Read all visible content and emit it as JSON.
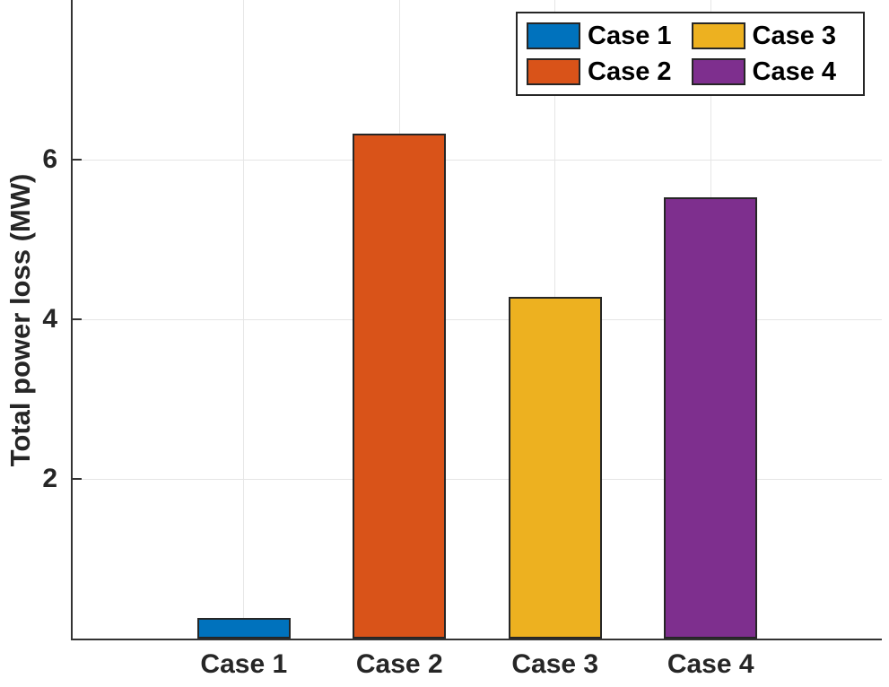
{
  "chart_data": {
    "type": "bar",
    "title": "",
    "xlabel": "",
    "ylabel": "Total power loss (MW)",
    "categories": [
      "Case 1",
      "Case 2",
      "Case 3",
      "Case 4"
    ],
    "values": [
      0.26,
      6.33,
      4.28,
      5.53
    ],
    "bar_colors": [
      "#0072BD",
      "#D95319",
      "#EDB120",
      "#7E2F8E"
    ],
    "ylim": [
      0,
      8
    ],
    "yticks": [
      2,
      4,
      6
    ],
    "xlim": [
      -0.1,
      5.1
    ],
    "bar_width_fraction": 0.6,
    "grid": "on",
    "legend": {
      "position": "top-right",
      "layout": "2x2-column-major",
      "entries": [
        {
          "label": "Case 1",
          "color": "#0072BD"
        },
        {
          "label": "Case 2",
          "color": "#D95319"
        },
        {
          "label": "Case 3",
          "color": "#EDB120"
        },
        {
          "label": "Case 4",
          "color": "#7E2F8E"
        }
      ]
    },
    "colors": {
      "axis": "#333333",
      "grid": "#e6e6e6",
      "bar_edge": "#262626",
      "text": "#262626",
      "legend_border": "#262626",
      "background": "#ffffff"
    }
  }
}
